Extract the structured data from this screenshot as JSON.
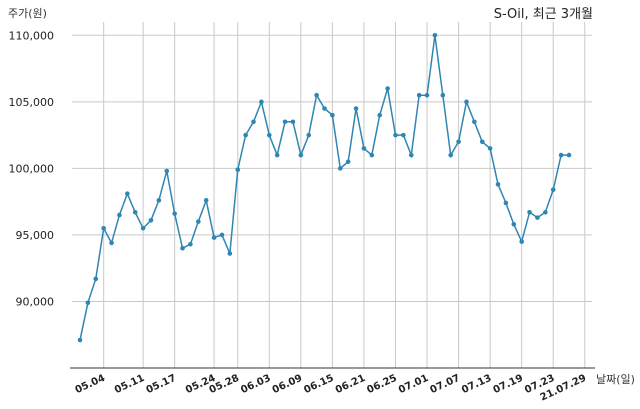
{
  "chart_data": {
    "type": "line",
    "title": "S-Oil, 최근 3개월",
    "xlabel": "날짜(일)",
    "ylabel": "주가(원)",
    "ylim": [
      85000,
      111000
    ],
    "yticks": [
      90000,
      95000,
      100000,
      105000,
      110000
    ],
    "ytick_labels": [
      "90,000",
      "95,000",
      "100,000",
      "105,000",
      "110,000"
    ],
    "grid": true,
    "line_color": "#2f86b3",
    "xtick_labels": [
      "05.04",
      "05.11",
      "05.17",
      "05.24",
      "05.28",
      "06.03",
      "06.09",
      "06.15",
      "06.21",
      "06.25",
      "07.01",
      "07.07",
      "07.13",
      "07.19",
      "07.23",
      "21.07.29"
    ],
    "xtick_positions": [
      3,
      8,
      12,
      17,
      20,
      24,
      28,
      32,
      36,
      40,
      44,
      48,
      52,
      56,
      60,
      64
    ],
    "series": [
      {
        "values": [
          87100,
          89900,
          91700,
          95500,
          94400,
          96500,
          98100,
          96700,
          95500,
          96100,
          97600,
          99800,
          96600,
          94000,
          94300,
          96000,
          97600,
          94800,
          95000,
          93600,
          99900,
          102500,
          103500,
          105000,
          102500,
          101000,
          103500,
          103500,
          101000,
          102500,
          105500,
          104500,
          104000,
          100000,
          100500,
          104500,
          101500,
          101000,
          104000,
          106000,
          102500,
          102500,
          101000,
          105500,
          105500,
          110000,
          105500,
          101000,
          102000,
          105000,
          103500,
          102000,
          101500,
          98800,
          97400,
          95800,
          94500,
          96700,
          96300,
          96700,
          98400,
          101000,
          101000
        ]
      }
    ]
  }
}
